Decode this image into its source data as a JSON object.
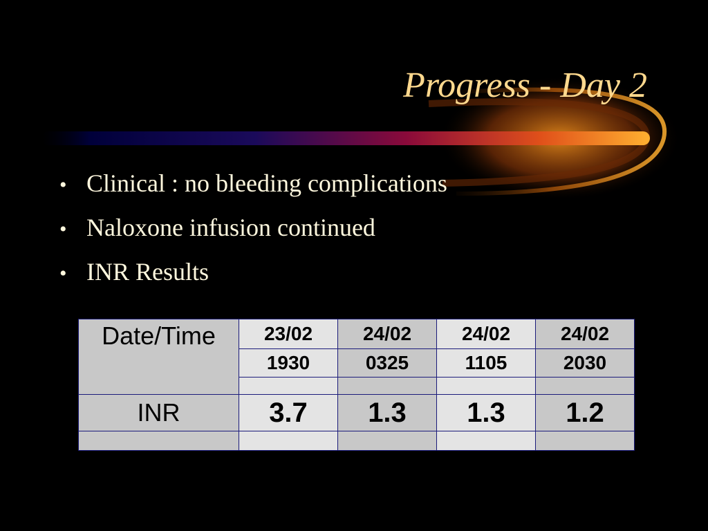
{
  "slide": {
    "title": "Progress - Day 2",
    "bullets": [
      "Clinical : no bleeding complications",
      "Naloxone infusion continued",
      "INR Results"
    ],
    "bullet_symbol": "•"
  },
  "table": {
    "row_headers": {
      "datetime": "Date/Time",
      "inr": "INR"
    },
    "columns": [
      {
        "date": "23/02",
        "time": "1930",
        "inr": "3.7"
      },
      {
        "date": "24/02",
        "time": "0325",
        "inr": "1.3"
      },
      {
        "date": "24/02",
        "time": "1105",
        "inr": "1.3"
      },
      {
        "date": "24/02",
        "time": "2030",
        "inr": "1.2"
      }
    ]
  },
  "colors": {
    "background": "#000000",
    "title": "#FFD98E",
    "bullet_text": "#FFF8DE",
    "table_border": "#1a1a7a",
    "cell_light": "#E4E4E4",
    "cell_dark": "#C8C8C8",
    "swoosh_start": "#00003a",
    "swoosh_mid": "#8a0a3a",
    "swoosh_end": "#FF9A1E"
  }
}
